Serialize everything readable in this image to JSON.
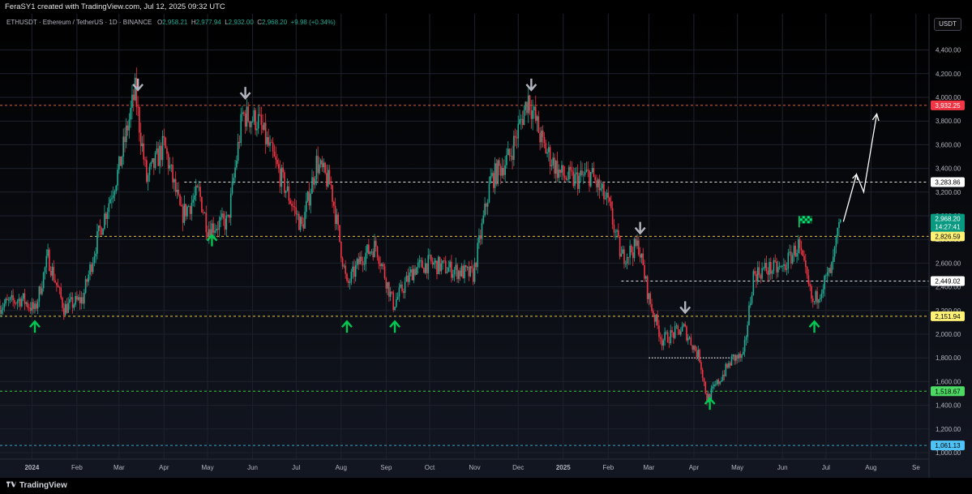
{
  "credit_line": "FeraSY1 created with TradingView.com, Jul 12, 2025 09:32 UTC",
  "footer_brand": "TradingView",
  "currency": "USDT",
  "legend": {
    "symbol": "ETHUSDT · Ethereum / TetherUS · 1D · BINANCE",
    "open_label": "O",
    "open": "2,958.21",
    "high_label": "H",
    "high": "2,977.94",
    "low_label": "L",
    "low": "2,932.00",
    "close_label": "C",
    "close": "2,968.20",
    "change": "+9.98 (+0.34%)"
  },
  "colors": {
    "up": "#22ab94",
    "down": "#f23645",
    "background_top": "#000000",
    "background_bottom": "#131722",
    "arrow_up": "#00c853",
    "arrow_down": "#b2b5be",
    "grid": "#1e222d",
    "axis_text": "#b2b5be"
  },
  "chart_data": {
    "type": "candlestick",
    "symbol": "ETHUSDT",
    "interval": "1D",
    "exchange": "BINANCE",
    "y_axis": {
      "min": 1000,
      "max": 4500,
      "ticks": [
        1000,
        1200,
        1400,
        1600,
        1800,
        2000,
        2200,
        2400,
        2600,
        2800,
        3000,
        3200,
        3400,
        3600,
        3800,
        4000,
        4200,
        4400
      ],
      "tick_labels": [
        "1,000.00",
        "1,200.00",
        "1,400.00",
        "1,600.00",
        "1,800.00",
        "2,000.00",
        "2,200.00",
        "2,400.00",
        "2,600.00",
        "2,800.00",
        "3,000.00",
        "3,200.00",
        "3,400.00",
        "3,600.00",
        "3,800.00",
        "4,000.00",
        "4,200.00",
        "4,400.00"
      ]
    },
    "x_axis": {
      "start": "2023-12-10",
      "end": "2025-09-10",
      "ticks": [
        {
          "date": "2024-01-01",
          "label": "2024",
          "bold": true
        },
        {
          "date": "2024-02-01",
          "label": "Feb"
        },
        {
          "date": "2024-03-01",
          "label": "Mar"
        },
        {
          "date": "2024-04-01",
          "label": "Apr"
        },
        {
          "date": "2024-05-01",
          "label": "May"
        },
        {
          "date": "2024-06-01",
          "label": "Jun"
        },
        {
          "date": "2024-07-01",
          "label": "Jul"
        },
        {
          "date": "2024-08-01",
          "label": "Aug"
        },
        {
          "date": "2024-09-01",
          "label": "Sep"
        },
        {
          "date": "2024-10-01",
          "label": "Oct"
        },
        {
          "date": "2024-11-01",
          "label": "Nov"
        },
        {
          "date": "2024-12-01",
          "label": "Dec"
        },
        {
          "date": "2025-01-01",
          "label": "2025",
          "bold": true
        },
        {
          "date": "2025-02-01",
          "label": "Feb"
        },
        {
          "date": "2025-03-01",
          "label": "Mar"
        },
        {
          "date": "2025-04-01",
          "label": "Apr"
        },
        {
          "date": "2025-05-01",
          "label": "May"
        },
        {
          "date": "2025-06-01",
          "label": "Jun"
        },
        {
          "date": "2025-07-01",
          "label": "Jul"
        },
        {
          "date": "2025-08-01",
          "label": "Aug"
        },
        {
          "date": "2025-09-01",
          "label": "Se"
        }
      ]
    },
    "price_path": [
      {
        "date": "2023-12-10",
        "close": 2240
      },
      {
        "date": "2023-12-25",
        "close": 2300
      },
      {
        "date": "2024-01-03",
        "close": 2200
      },
      {
        "date": "2024-01-12",
        "close": 2650
      },
      {
        "date": "2024-01-23",
        "close": 2220
      },
      {
        "date": "2024-02-05",
        "close": 2300
      },
      {
        "date": "2024-02-15",
        "close": 2800
      },
      {
        "date": "2024-03-01",
        "close": 3400
      },
      {
        "date": "2024-03-12",
        "close": 4050
      },
      {
        "date": "2024-03-20",
        "close": 3300
      },
      {
        "date": "2024-04-01",
        "close": 3600
      },
      {
        "date": "2024-04-13",
        "close": 3000
      },
      {
        "date": "2024-04-25",
        "close": 3200
      },
      {
        "date": "2024-05-01",
        "close": 2900
      },
      {
        "date": "2024-05-15",
        "close": 2950
      },
      {
        "date": "2024-05-25",
        "close": 3850
      },
      {
        "date": "2024-06-05",
        "close": 3800
      },
      {
        "date": "2024-06-18",
        "close": 3400
      },
      {
        "date": "2024-07-05",
        "close": 2900
      },
      {
        "date": "2024-07-15",
        "close": 3450
      },
      {
        "date": "2024-07-25",
        "close": 3250
      },
      {
        "date": "2024-08-05",
        "close": 2400
      },
      {
        "date": "2024-08-15",
        "close": 2650
      },
      {
        "date": "2024-08-25",
        "close": 2750
      },
      {
        "date": "2024-09-06",
        "close": 2250
      },
      {
        "date": "2024-09-20",
        "close": 2550
      },
      {
        "date": "2024-10-01",
        "close": 2600
      },
      {
        "date": "2024-10-15",
        "close": 2550
      },
      {
        "date": "2024-10-31",
        "close": 2500
      },
      {
        "date": "2024-11-12",
        "close": 3300
      },
      {
        "date": "2024-11-25",
        "close": 3500
      },
      {
        "date": "2024-12-08",
        "close": 4000
      },
      {
        "date": "2024-12-18",
        "close": 3600
      },
      {
        "date": "2024-12-30",
        "close": 3350
      },
      {
        "date": "2025-01-08",
        "close": 3300
      },
      {
        "date": "2025-01-20",
        "close": 3350
      },
      {
        "date": "2025-02-01",
        "close": 3100
      },
      {
        "date": "2025-02-10",
        "close": 2650
      },
      {
        "date": "2025-02-22",
        "close": 2750
      },
      {
        "date": "2025-03-01",
        "close": 2300
      },
      {
        "date": "2025-03-10",
        "close": 1950
      },
      {
        "date": "2025-03-25",
        "close": 2050
      },
      {
        "date": "2025-04-05",
        "close": 1800
      },
      {
        "date": "2025-04-10",
        "close": 1450
      },
      {
        "date": "2025-04-18",
        "close": 1600
      },
      {
        "date": "2025-04-28",
        "close": 1800
      },
      {
        "date": "2025-05-05",
        "close": 1800
      },
      {
        "date": "2025-05-12",
        "close": 2500
      },
      {
        "date": "2025-05-20",
        "close": 2550
      },
      {
        "date": "2025-06-01",
        "close": 2550
      },
      {
        "date": "2025-06-12",
        "close": 2750
      },
      {
        "date": "2025-06-22",
        "close": 2250
      },
      {
        "date": "2025-06-28",
        "close": 2400
      },
      {
        "date": "2025-07-05",
        "close": 2550
      },
      {
        "date": "2025-07-11",
        "close": 2968
      }
    ],
    "horizontal_levels": [
      {
        "value": 3932.25,
        "label": "3,932.25",
        "color": "#d9623b",
        "tag_bg": "#f23645",
        "tag_fg": "#ffffff",
        "style": "dashed",
        "from": "2023-12-10"
      },
      {
        "value": 3283.86,
        "label": "3,283.86",
        "color": "#e0e0e0",
        "tag_bg": "#ffffff",
        "tag_fg": "#000000",
        "style": "dashed",
        "from": "2024-04-15"
      },
      {
        "value": 2826.59,
        "label": "2,826.59",
        "color": "#e8c547",
        "tag_bg": "#fff176",
        "tag_fg": "#000000",
        "style": "dashed",
        "from": "2024-02-10"
      },
      {
        "value": 2449.02,
        "label": "2,449.02",
        "color": "#e0e0e0",
        "tag_bg": "#ffffff",
        "tag_fg": "#000000",
        "style": "dashed",
        "from": "2025-02-10"
      },
      {
        "value": 2151.94,
        "label": "2,151.94",
        "color": "#e8c547",
        "tag_bg": "#fff176",
        "tag_fg": "#000000",
        "style": "dashed",
        "from": "2023-12-10"
      },
      {
        "value": 1518.67,
        "label": "1,518.67",
        "color": "#33cc33",
        "tag_bg": "#4cd964",
        "tag_fg": "#000000",
        "style": "dashed",
        "from": "2023-12-10"
      },
      {
        "value": 1061.13,
        "label": "1,061.13",
        "color": "#3aa5c9",
        "tag_bg": "#4fc3f7",
        "tag_fg": "#000000",
        "style": "dashed",
        "from": "2023-12-10"
      }
    ],
    "dotted_segments": [
      {
        "value": 1800,
        "from": "2025-03-01",
        "to": "2025-04-28",
        "color": "#ffffff"
      }
    ],
    "current_price": {
      "value": 2968.2,
      "label": "2,968.20",
      "countdown": "14:27:41",
      "tag_bg": "#089981"
    },
    "markers": [
      {
        "type": "up",
        "date": "2024-01-03",
        "value": 2060
      },
      {
        "type": "down",
        "date": "2024-03-14",
        "value": 4110
      },
      {
        "type": "up",
        "date": "2024-05-04",
        "value": 2790
      },
      {
        "type": "down",
        "date": "2024-05-27",
        "value": 4040
      },
      {
        "type": "up",
        "date": "2024-08-05",
        "value": 2060
      },
      {
        "type": "up",
        "date": "2024-09-07",
        "value": 2060
      },
      {
        "type": "down",
        "date": "2024-12-10",
        "value": 4110
      },
      {
        "type": "down",
        "date": "2025-02-23",
        "value": 2900
      },
      {
        "type": "down",
        "date": "2025-03-26",
        "value": 2230
      },
      {
        "type": "up",
        "date": "2025-04-12",
        "value": 1410
      },
      {
        "type": "up",
        "date": "2025-06-23",
        "value": 2060
      },
      {
        "type": "flag",
        "date": "2025-06-17",
        "value": 2950
      }
    ],
    "projection_path": [
      {
        "date": "2025-07-13",
        "value": 2950
      },
      {
        "date": "2025-07-22",
        "value": 3350
      },
      {
        "date": "2025-07-27",
        "value": 3200
      },
      {
        "date": "2025-08-05",
        "value": 3860
      }
    ]
  }
}
